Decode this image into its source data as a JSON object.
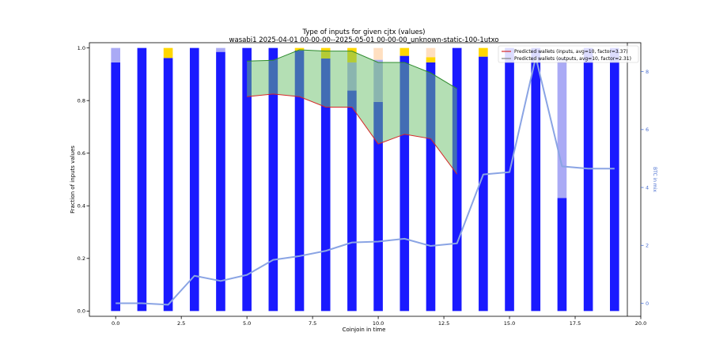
{
  "chart_data": {
    "type": "bar",
    "title": "Type of inputs for given cjtx (values)",
    "subtitle": "wasabi1 2025-04-01 00-00-00--2025-05-01 00-00-00_unknown-static-100-1utxo",
    "xlabel": "Coinjoin in time",
    "ylabel": "Fraction of inputs values",
    "y2label": "BTC in mix",
    "xlim": [
      -1,
      20
    ],
    "ylim": [
      -0.02,
      1.02
    ],
    "y2lim": [
      -0.45,
      9.0
    ],
    "x_ticks": [
      0.0,
      2.5,
      5.0,
      7.5,
      10.0,
      12.5,
      15.0,
      17.5,
      20.0
    ],
    "x_tick_labels": [
      "0.0",
      "2.5",
      "5.0",
      "7.5",
      "10.0",
      "12.5",
      "15.0",
      "17.5",
      "20.0"
    ],
    "y_ticks": [
      0.0,
      0.2,
      0.4,
      0.6,
      0.8,
      1.0
    ],
    "y_tick_labels": [
      "0.0",
      "0.2",
      "0.4",
      "0.6",
      "0.8",
      "1.0"
    ],
    "y2_ticks": [
      0,
      2,
      4,
      6,
      8
    ],
    "y2_tick_labels": [
      "0",
      "2",
      "4",
      "6",
      "8"
    ],
    "legend_position": "top-right",
    "legend": [
      {
        "label": "Predicted wallets (inputs, avg=10, factor=3.37)",
        "color": "#d62728"
      },
      {
        "label": "Predicted wallets (outputs, avg=10, factor=2.31)",
        "color": "#808080"
      }
    ],
    "colors": {
      "main_bar": "#1a1aff",
      "light_bar": "#aaaaf5",
      "yellow_bar": "#ffd700",
      "peach_bar": "#ffdfc0",
      "fill_area": "#6abf69",
      "inputs_line": "#d62728",
      "outputs_line": "#2e8b2e",
      "btc_line": "#8aa4e4",
      "y2_axis": "#4a6fd0"
    },
    "bars": [
      {
        "x": 0,
        "blue": 0.945,
        "light_top": 1.0
      },
      {
        "x": 1,
        "blue": 1.0
      },
      {
        "x": 2,
        "blue": 0.962,
        "yellow_top": 1.0
      },
      {
        "x": 3,
        "blue": 1.0
      },
      {
        "x": 4,
        "blue": 0.985,
        "light_top": 1.0
      },
      {
        "x": 5,
        "blue": 1.0
      },
      {
        "x": 6,
        "blue": 1.0
      },
      {
        "x": 7,
        "blue": 0.99,
        "yellow_top": 1.0
      },
      {
        "x": 8,
        "blue": 0.96,
        "yellow_top": 1.0
      },
      {
        "x": 9,
        "blue": 0.838,
        "light_top": 0.945,
        "yellow_top": 1.0
      },
      {
        "x": 10,
        "blue": 0.795,
        "light_top": 0.955,
        "peach_top": 1.0
      },
      {
        "x": 11,
        "blue": 0.97,
        "yellow_top": 1.0
      },
      {
        "x": 12,
        "blue": 0.945,
        "yellow_top": 0.965,
        "peach_top": 1.0
      },
      {
        "x": 13,
        "blue": 1.0
      },
      {
        "x": 14,
        "blue": 0.967,
        "yellow_top": 1.0
      },
      {
        "x": 15,
        "blue": 1.0
      },
      {
        "x": 16,
        "blue": 1.0
      },
      {
        "x": 17,
        "blue": 0.43,
        "light_top": 0.96
      },
      {
        "x": 18,
        "blue": 1.0
      },
      {
        "x": 19,
        "blue": 1.0
      }
    ],
    "series": [
      {
        "name": "Predicted wallets (inputs, avg=10, factor=3.37)",
        "axis": "left",
        "x": [
          5,
          6,
          7,
          8,
          9,
          10,
          11,
          12,
          13
        ],
        "values": [
          0.815,
          0.825,
          0.815,
          0.775,
          0.775,
          0.635,
          0.672,
          0.655,
          0.52
        ]
      },
      {
        "name": "Predicted wallets (outputs, avg=10, factor=2.31)",
        "axis": "left",
        "x": [
          5,
          6,
          7,
          8,
          9,
          10,
          11,
          12,
          13
        ],
        "values": [
          0.95,
          0.953,
          0.993,
          0.988,
          0.988,
          0.945,
          0.945,
          0.905,
          0.845
        ]
      },
      {
        "axis": "right",
        "x": [
          0,
          1,
          2,
          3,
          4,
          5,
          6,
          7,
          8,
          9,
          10,
          11,
          12,
          13,
          14,
          15,
          16,
          17,
          18,
          19
        ],
        "values": [
          0.0,
          0.0,
          -0.05,
          0.95,
          0.77,
          0.98,
          1.5,
          1.63,
          1.81,
          2.1,
          2.13,
          2.23,
          1.98,
          2.07,
          4.45,
          4.53,
          8.5,
          4.73,
          4.65,
          4.65
        ]
      }
    ]
  }
}
